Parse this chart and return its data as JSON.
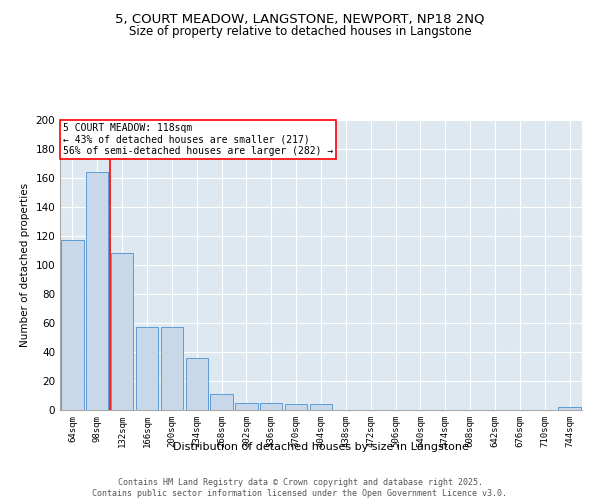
{
  "title": "5, COURT MEADOW, LANGSTONE, NEWPORT, NP18 2NQ",
  "subtitle": "Size of property relative to detached houses in Langstone",
  "xlabel": "Distribution of detached houses by size in Langstone",
  "ylabel": "Number of detached properties",
  "bar_color": "#c8d8e8",
  "bar_edge_color": "#5b9bd5",
  "background_color": "#dde8f0",
  "grid_color": "#ffffff",
  "categories": [
    "64sqm",
    "98sqm",
    "132sqm",
    "166sqm",
    "200sqm",
    "234sqm",
    "268sqm",
    "302sqm",
    "336sqm",
    "370sqm",
    "404sqm",
    "438sqm",
    "472sqm",
    "506sqm",
    "540sqm",
    "574sqm",
    "608sqm",
    "642sqm",
    "676sqm",
    "710sqm",
    "744sqm"
  ],
  "values": [
    117,
    164,
    108,
    57,
    57,
    36,
    11,
    5,
    5,
    4,
    4,
    0,
    0,
    0,
    0,
    0,
    0,
    0,
    0,
    0,
    2
  ],
  "ylim": [
    0,
    200
  ],
  "yticks": [
    0,
    20,
    40,
    60,
    80,
    100,
    120,
    140,
    160,
    180,
    200
  ],
  "property_line_x": 1.5,
  "annotation_text": "5 COURT MEADOW: 118sqm\n← 43% of detached houses are smaller (217)\n56% of semi-detached houses are larger (282) →",
  "annotation_box_color": "white",
  "annotation_box_edge_color": "red",
  "vline_color": "red",
  "footer_line1": "Contains HM Land Registry data © Crown copyright and database right 2025.",
  "footer_line2": "Contains public sector information licensed under the Open Government Licence v3.0."
}
